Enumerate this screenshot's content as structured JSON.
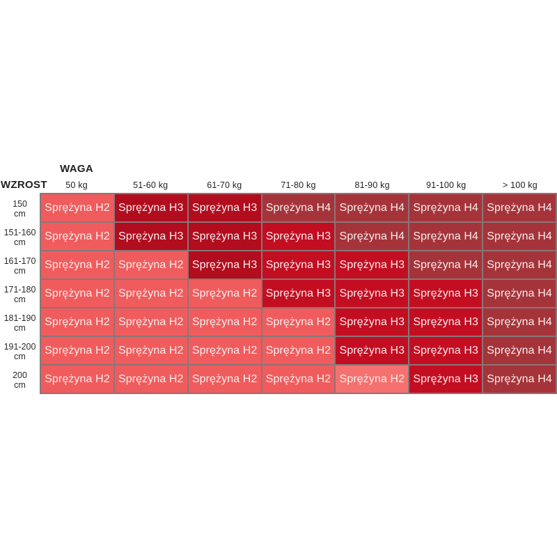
{
  "chart_data": {
    "type": "heatmap",
    "title": "",
    "x_header": "WAGA",
    "y_header": "WZROST",
    "columns": [
      "50 kg",
      "51-60 kg",
      "61-70 kg",
      "71-80 kg",
      "81-90 kg",
      "91-100 kg",
      "> 100 kg"
    ],
    "rows": [
      "150",
      "151-160",
      "161-170",
      "171-180",
      "181-190",
      "191-200",
      "200"
    ],
    "row_unit": "cm",
    "values": [
      [
        "Sprężyna H2",
        "Sprężyna H3",
        "Sprężyna H3",
        "Sprężyna H4",
        "Sprężyna H4",
        "Sprężyna H4",
        "Sprężyna H4"
      ],
      [
        "Sprężyna H2",
        "Sprężyna H3",
        "Sprężyna H3",
        "Sprężyna H3",
        "Sprężyna H4",
        "Sprężyna H4",
        "Sprężyna H4"
      ],
      [
        "Sprężyna H2",
        "Sprężyna H2",
        "Sprężyna H3",
        "Sprężyna H3",
        "Sprężyna H3",
        "Sprężyna H4",
        "Sprężyna H4"
      ],
      [
        "Sprężyna H2",
        "Sprężyna H2",
        "Sprężyna H2",
        "Sprężyna H3",
        "Sprężyna H3",
        "Sprężyna H3",
        "Sprężyna H4"
      ],
      [
        "Sprężyna H2",
        "Sprężyna H2",
        "Sprężyna H2",
        "Sprężyna H2",
        "Sprężyna H3",
        "Sprężyna H3",
        "Sprężyna H4"
      ],
      [
        "Sprężyna H2",
        "Sprężyna H2",
        "Sprężyna H2",
        "Sprężyna H2",
        "Sprężyna H3",
        "Sprężyna H3",
        "Sprężyna H4"
      ],
      [
        "Sprężyna H2",
        "Sprężyna H2",
        "Sprężyna H2",
        "Sprężyna H2",
        "Sprężyna H2",
        "Sprężyna H3",
        "Sprężyna H4"
      ]
    ],
    "tones": [
      [
        "h2",
        "h3Dark",
        "h3Dark",
        "h4",
        "h4",
        "h4",
        "h4"
      ],
      [
        "h2",
        "h3Dark",
        "h3Dark",
        "h3",
        "h4",
        "h4",
        "h4"
      ],
      [
        "h2",
        "h2",
        "h3Dark",
        "h3",
        "h3",
        "h4",
        "h4"
      ],
      [
        "h2",
        "h2",
        "h2",
        "h3",
        "h3",
        "h3",
        "h4"
      ],
      [
        "h2",
        "h2",
        "h2",
        "h2",
        "h3",
        "h3",
        "h4"
      ],
      [
        "h2",
        "h2",
        "h2",
        "h2",
        "h3",
        "h3",
        "h4"
      ],
      [
        "h2",
        "h2",
        "h2",
        "h2",
        "h2Light",
        "h3",
        "h4"
      ]
    ],
    "legend_position": "none",
    "grid": true
  },
  "colors": {
    "h2": "#f05c5d",
    "h2Light": "#f5716f",
    "h3": "#c30e22",
    "h3Dark": "#b10d1e",
    "h4": "#a5343a",
    "cell_text": "#f7eded",
    "label_text": "#1f1f1d",
    "grid_line": "rgba(40,6,10,0.55)"
  }
}
